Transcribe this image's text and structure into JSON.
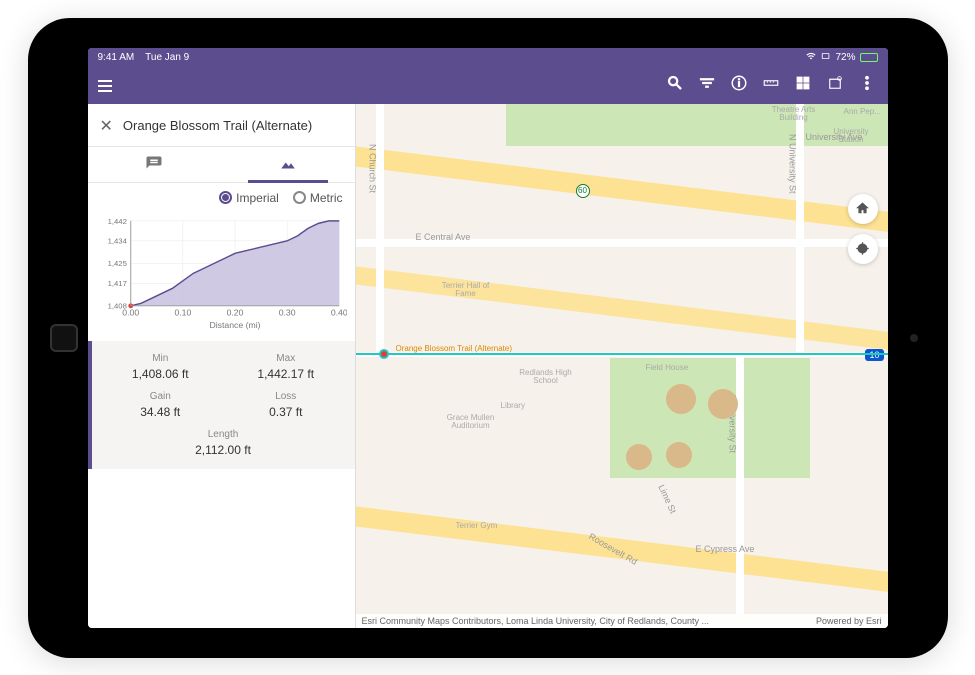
{
  "status": {
    "time": "9:41 AM",
    "date": "Tue Jan 9",
    "battery_pct": "72%",
    "battery_fill_pct": 72
  },
  "panel": {
    "title": "Orange Blossom Trail (Alternate)",
    "units": {
      "imperial": "Imperial",
      "metric": "Metric",
      "selected": "imperial"
    }
  },
  "chart": {
    "type": "area",
    "xlabel": "Distance (mi)",
    "xlim": [
      0.0,
      0.4
    ],
    "xtick_step": 0.1,
    "xtick_labels": [
      "0.00",
      "0.10",
      "0.20",
      "0.30",
      "0.40"
    ],
    "ylim": [
      1408,
      1442
    ],
    "ytick_labels": [
      "1,408",
      "1,417",
      "1,425",
      "1,434",
      "1,442"
    ],
    "yticks": [
      1408,
      1417,
      1425,
      1434,
      1442
    ],
    "line_color": "#5c4e8e",
    "fill_color": "#c7c0df",
    "grid_color": "#e6e6e6",
    "background_color": "#ffffff",
    "axis_color": "#999999",
    "label_fontsize": 9,
    "points": [
      [
        0.0,
        1408
      ],
      [
        0.02,
        1409
      ],
      [
        0.04,
        1411
      ],
      [
        0.06,
        1413
      ],
      [
        0.08,
        1415
      ],
      [
        0.1,
        1418
      ],
      [
        0.12,
        1421
      ],
      [
        0.14,
        1423
      ],
      [
        0.16,
        1425
      ],
      [
        0.18,
        1427
      ],
      [
        0.2,
        1429
      ],
      [
        0.22,
        1430
      ],
      [
        0.24,
        1431
      ],
      [
        0.26,
        1432
      ],
      [
        0.28,
        1433
      ],
      [
        0.3,
        1434
      ],
      [
        0.32,
        1436
      ],
      [
        0.34,
        1439
      ],
      [
        0.36,
        1441
      ],
      [
        0.38,
        1442
      ],
      [
        0.4,
        1442
      ]
    ]
  },
  "stats": {
    "min": {
      "label": "Min",
      "value": "1,408.06 ft"
    },
    "max": {
      "label": "Max",
      "value": "1,442.17 ft"
    },
    "gain": {
      "label": "Gain",
      "value": "34.48 ft"
    },
    "loss": {
      "label": "Loss",
      "value": "0.37 ft"
    },
    "length": {
      "label": "Length",
      "value": "2,112.00 ft"
    }
  },
  "map": {
    "trail_name": "Orange Blossom Trail (Alternate)",
    "hwy": "10",
    "route": "60",
    "colors": {
      "land": "#f7f1eb",
      "park": "#cde6b5",
      "highway": "#fde293",
      "road": "#ffffff",
      "trail": "#1fc9c0",
      "field": "#d9b88a"
    },
    "roads": {
      "n_church": "N Church St",
      "e_central": "E Central Ave",
      "n_university": "N University St",
      "s_university": "S University St",
      "lime": "Lime St",
      "roosevelt": "Roosevelt Rd",
      "e_cypress": "E Cypress Ave",
      "university_ave": "University Ave"
    },
    "places": {
      "terrier_hall": "Terrier Hall of Fame",
      "redlands_hs": "Redlands High School",
      "library": "Library",
      "grace_mullen": "Grace Mullen Auditorium",
      "field_house": "Field House",
      "terrier_gym": "Terrier Gym",
      "theatre_arts": "Theatre Arts Building",
      "university_station": "University Station",
      "ann_pep": "Ann Pep..."
    },
    "attribution_left": "Esri Community Maps Contributors, Loma Linda University, City of Redlands, County ...",
    "attribution_right": "Powered by Esri"
  }
}
